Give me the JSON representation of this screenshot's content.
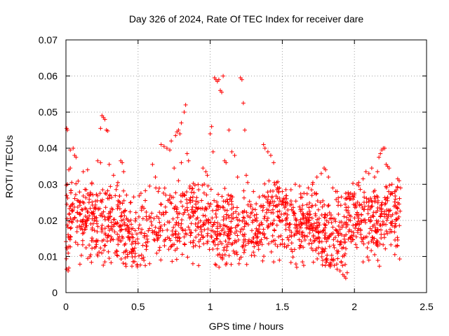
{
  "chart_data": {
    "type": "scatter",
    "title": "Day 326 of 2024, Rate Of TEC Index for receiver dare",
    "xlabel": "GPS time / hours",
    "ylabel": "ROTI / TECUs",
    "xlim": [
      0,
      2.5
    ],
    "ylim": [
      0,
      0.07
    ],
    "xticks": [
      0,
      0.5,
      1,
      1.5,
      2,
      2.5
    ],
    "xtick_labels": [
      "0",
      "0.5",
      "1",
      "1.5",
      "2",
      "2.5"
    ],
    "yticks": [
      0,
      0.01,
      0.02,
      0.03,
      0.04,
      0.05,
      0.06,
      0.07
    ],
    "ytick_labels": [
      "0",
      "0.01",
      "0.02",
      "0.03",
      "0.04",
      "0.05",
      "0.06",
      "0.07"
    ],
    "grid": true,
    "marker": "plus",
    "color": "#ff0000",
    "series": [
      {
        "name": "ROTI",
        "points": [
          [
            0.005,
            0.0455
          ],
          [
            0.01,
            0.045
          ],
          [
            0.02,
            0.034
          ],
          [
            0.03,
            0.0395
          ],
          [
            0.05,
            0.04
          ],
          [
            0.06,
            0.038
          ],
          [
            0.005,
            0.0065
          ],
          [
            0.015,
            0.006
          ],
          [
            0.02,
            0.0068
          ],
          [
            0.01,
            0.03
          ],
          [
            0.03,
            0.0345
          ],
          [
            0.04,
            0.0305
          ],
          [
            0.07,
            0.0375
          ],
          [
            0.12,
            0.0335
          ],
          [
            0.15,
            0.034
          ],
          [
            0.14,
            0.0285
          ],
          [
            0.22,
            0.0365
          ],
          [
            0.24,
            0.036
          ],
          [
            0.25,
            0.049
          ],
          [
            0.26,
            0.0485
          ],
          [
            0.27,
            0.048
          ],
          [
            0.24,
            0.0455
          ],
          [
            0.28,
            0.045
          ],
          [
            0.29,
            0.0448
          ],
          [
            0.3,
            0.0355
          ],
          [
            0.33,
            0.0325
          ],
          [
            0.36,
            0.0305
          ],
          [
            0.38,
            0.0365
          ],
          [
            0.39,
            0.036
          ],
          [
            0.4,
            0.0335
          ],
          [
            0.42,
            0.027
          ],
          [
            0.45,
            0.025
          ],
          [
            0.47,
            0.0265
          ],
          [
            0.52,
            0.0275
          ],
          [
            0.55,
            0.0255
          ],
          [
            0.58,
            0.0295
          ],
          [
            0.6,
            0.0355
          ],
          [
            0.62,
            0.032
          ],
          [
            0.64,
            0.028
          ],
          [
            0.66,
            0.041
          ],
          [
            0.68,
            0.0405
          ],
          [
            0.7,
            0.04
          ],
          [
            0.72,
            0.0395
          ],
          [
            0.73,
            0.042
          ],
          [
            0.75,
            0.0345
          ],
          [
            0.76,
            0.0435
          ],
          [
            0.77,
            0.0445
          ],
          [
            0.78,
            0.045
          ],
          [
            0.79,
            0.044
          ],
          [
            0.8,
            0.047
          ],
          [
            0.82,
            0.05
          ],
          [
            0.83,
            0.052
          ],
          [
            0.84,
            0.0385
          ],
          [
            0.85,
            0.0365
          ],
          [
            0.8,
            0.036
          ],
          [
            0.78,
            0.031
          ],
          [
            0.81,
            0.0275
          ],
          [
            0.86,
            0.0295
          ],
          [
            0.88,
            0.0265
          ],
          [
            0.9,
            0.0245
          ],
          [
            0.92,
            0.0285
          ],
          [
            0.94,
            0.0255
          ],
          [
            0.95,
            0.0345
          ],
          [
            0.97,
            0.0335
          ],
          [
            0.98,
            0.0325
          ],
          [
            1.0,
            0.044
          ],
          [
            1.01,
            0.046
          ],
          [
            1.02,
            0.039
          ],
          [
            1.03,
            0.0595
          ],
          [
            1.04,
            0.059
          ],
          [
            1.05,
            0.0585
          ],
          [
            1.06,
            0.059
          ],
          [
            1.07,
            0.056
          ],
          [
            1.08,
            0.0555
          ],
          [
            1.09,
            0.06
          ],
          [
            1.1,
            0.0365
          ],
          [
            1.11,
            0.036
          ],
          [
            1.13,
            0.045
          ],
          [
            1.15,
            0.039
          ],
          [
            1.17,
            0.038
          ],
          [
            1.19,
            0.032
          ],
          [
            1.21,
            0.0595
          ],
          [
            1.22,
            0.059
          ],
          [
            1.23,
            0.0525
          ],
          [
            1.24,
            0.045
          ],
          [
            1.25,
            0.0325
          ],
          [
            1.26,
            0.0305
          ],
          [
            1.3,
            0.028
          ],
          [
            1.34,
            0.0265
          ],
          [
            1.37,
            0.041
          ],
          [
            1.38,
            0.04
          ],
          [
            1.4,
            0.039
          ],
          [
            1.42,
            0.038
          ],
          [
            1.44,
            0.036
          ],
          [
            1.46,
            0.0305
          ],
          [
            1.48,
            0.029
          ],
          [
            1.5,
            0.028
          ],
          [
            1.53,
            0.026
          ],
          [
            1.56,
            0.0285
          ],
          [
            1.59,
            0.03
          ],
          [
            1.62,
            0.0295
          ],
          [
            1.65,
            0.0275
          ],
          [
            1.68,
            0.029
          ],
          [
            1.71,
            0.03
          ],
          [
            1.74,
            0.032
          ],
          [
            1.77,
            0.033
          ],
          [
            1.79,
            0.0345
          ],
          [
            1.8,
            0.034
          ],
          [
            1.82,
            0.032
          ],
          [
            1.85,
            0.029
          ],
          [
            1.88,
            0.028
          ],
          [
            1.91,
            0.0265
          ],
          [
            1.94,
            0.0275
          ],
          [
            1.97,
            0.026
          ],
          [
            2.0,
            0.0275
          ],
          [
            2.03,
            0.0305
          ],
          [
            2.06,
            0.0315
          ],
          [
            2.08,
            0.0335
          ],
          [
            2.1,
            0.033
          ],
          [
            2.12,
            0.0345
          ],
          [
            2.14,
            0.032
          ],
          [
            2.16,
            0.0335
          ],
          [
            2.17,
            0.0375
          ],
          [
            2.18,
            0.0385
          ],
          [
            2.19,
            0.0395
          ],
          [
            2.2,
            0.04
          ],
          [
            2.21,
            0.04
          ],
          [
            2.22,
            0.0355
          ],
          [
            2.23,
            0.035
          ],
          [
            2.24,
            0.0345
          ],
          [
            2.26,
            0.03
          ],
          [
            2.28,
            0.028
          ],
          [
            2.3,
            0.0315
          ],
          [
            2.31,
            0.031
          ],
          [
            2.32,
            0.029
          ],
          [
            1.86,
            0.0075
          ],
          [
            1.88,
            0.0065
          ],
          [
            1.9,
            0.006
          ],
          [
            1.92,
            0.005
          ],
          [
            1.93,
            0.0045
          ],
          [
            1.94,
            0.004
          ],
          [
            1.95,
            0.0055
          ],
          [
            1.6,
            0.007
          ],
          [
            1.64,
            0.0085
          ],
          [
            0.55,
            0.0075
          ],
          [
            0.58,
            0.008
          ],
          [
            0.88,
            0.008
          ],
          [
            0.92,
            0.0075
          ],
          [
            0.27,
            0.0085
          ],
          [
            0.3,
            0.0095
          ],
          [
            1.44,
            0.0085
          ],
          [
            1.48,
            0.009
          ],
          [
            2.06,
            0.0085
          ],
          [
            2.1,
            0.009
          ],
          [
            1.2,
            0.008
          ]
        ],
        "band": {
          "x_start": 0.0,
          "x_end": 2.32,
          "y_low": 0.0085,
          "y_high": 0.029,
          "count": 1550,
          "seed": 326
        }
      }
    ]
  }
}
